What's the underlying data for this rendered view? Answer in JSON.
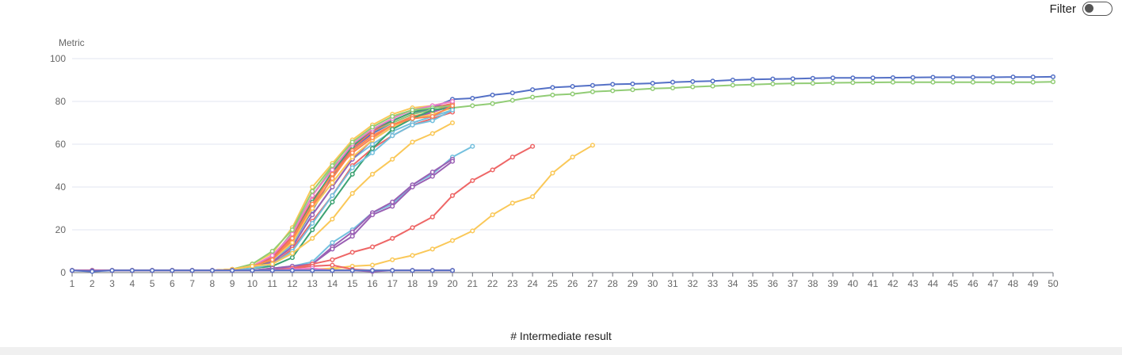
{
  "filter": {
    "label": "Filter",
    "enabled": false
  },
  "chart_data": {
    "type": "line",
    "title": "",
    "xlabel": "# Intermediate result",
    "ylabel": "Metric",
    "xlim": [
      1,
      50
    ],
    "ylim": [
      0,
      100
    ],
    "yticks": [
      0,
      20,
      40,
      60,
      80,
      100
    ],
    "grid": true,
    "legend": "none",
    "series": [
      {
        "color": "#5470c6",
        "x_start": 1,
        "values": [
          1,
          1,
          1,
          1,
          1,
          1,
          1,
          1,
          1,
          2,
          4,
          14,
          29,
          45,
          58,
          65,
          70,
          74,
          77,
          81,
          81.5,
          83,
          84,
          85.5,
          86.5,
          87,
          87.5,
          88,
          88.2,
          88.5,
          89,
          89.3,
          89.5,
          90,
          90.3,
          90.5,
          90.6,
          90.8,
          91,
          91,
          91,
          91.1,
          91.2,
          91.3,
          91.3,
          91.3,
          91.3,
          91.4,
          91.4,
          91.5
        ]
      },
      {
        "color": "#91cc75",
        "x_start": 1,
        "values": [
          1,
          1,
          1,
          1,
          1,
          1,
          1,
          1,
          1,
          3,
          7,
          19,
          36,
          49,
          59,
          66,
          70,
          74,
          76,
          77,
          78,
          79,
          80.5,
          82,
          83,
          83.5,
          84.5,
          85,
          85.5,
          86,
          86.3,
          86.8,
          87.2,
          87.6,
          87.9,
          88.2,
          88.4,
          88.5,
          88.7,
          88.8,
          88.9,
          89,
          89,
          89,
          89,
          89,
          89,
          89,
          89,
          89.2
        ]
      },
      {
        "color": "#fac858",
        "x_start": 1,
        "values": [
          1,
          1,
          1,
          1,
          1,
          1,
          1,
          1,
          1.5,
          4,
          9,
          21,
          40,
          51,
          62,
          69,
          74,
          77,
          78,
          80
        ]
      },
      {
        "color": "#ee6666",
        "x_start": 1,
        "values": [
          1,
          1,
          1,
          1,
          1,
          1,
          1,
          1,
          1.5,
          3,
          7,
          17,
          34,
          46,
          58,
          66,
          71,
          75,
          77,
          79
        ]
      },
      {
        "color": "#73c0de",
        "x_start": 1,
        "values": [
          1,
          1,
          1,
          1,
          1,
          1,
          1,
          1,
          1,
          2,
          5,
          13,
          27,
          40,
          53,
          60,
          66,
          70,
          73,
          76
        ]
      },
      {
        "color": "#3ba272",
        "x_start": 1,
        "values": [
          1,
          1,
          1,
          1,
          1,
          1,
          1,
          1,
          1,
          2,
          6,
          16,
          33,
          47,
          59,
          67,
          71,
          75,
          77,
          78
        ]
      },
      {
        "color": "#fc8452",
        "x_start": 1,
        "values": [
          1,
          1,
          1,
          1,
          1,
          1,
          1,
          1,
          1.5,
          3,
          6,
          15,
          31,
          44,
          57,
          64,
          69,
          73,
          75,
          79
        ]
      },
      {
        "color": "#9a60b4",
        "x_start": 1,
        "values": [
          1,
          1,
          1,
          1,
          1,
          1,
          1,
          1,
          1,
          2,
          5,
          12,
          27,
          40,
          53,
          62,
          68,
          72,
          75,
          78
        ]
      },
      {
        "color": "#ea7ccc",
        "x_start": 1,
        "values": [
          1,
          1,
          1,
          1,
          1,
          1,
          1,
          1,
          1.5,
          3,
          8,
          18,
          36,
          48,
          60,
          67,
          72,
          76,
          78,
          80
        ]
      },
      {
        "color": "#91cc75",
        "x_start": 1,
        "values": [
          1,
          1,
          1,
          1,
          1,
          1,
          1,
          1,
          1.5,
          4,
          10,
          20,
          38,
          50,
          61,
          68,
          73,
          76,
          77,
          78
        ]
      },
      {
        "color": "#ee6666",
        "x_start": 1,
        "values": [
          1,
          1,
          1,
          1,
          1,
          1,
          1,
          1,
          1,
          2,
          4,
          11,
          24,
          36,
          50,
          58,
          64,
          69,
          72,
          75
        ]
      },
      {
        "color": "#fac858",
        "x_start": 1,
        "values": [
          1,
          1,
          1,
          1,
          1,
          1,
          1,
          1,
          1.5,
          3,
          6,
          14,
          30,
          42,
          54,
          62,
          68,
          72,
          74,
          77
        ]
      },
      {
        "color": "#3ba272",
        "x_start": 1,
        "values": [
          1,
          1,
          1,
          1,
          1,
          1,
          1,
          1,
          1,
          2,
          3,
          7,
          20,
          33,
          46,
          58,
          67,
          72,
          76,
          77
        ]
      },
      {
        "color": "#73c0de",
        "x_start": 1,
        "values": [
          1,
          1,
          1,
          1,
          1,
          1,
          1,
          1,
          1,
          2,
          4,
          10,
          23,
          36,
          49,
          56,
          64,
          69,
          71,
          76
        ]
      },
      {
        "color": "#fc8452",
        "x_start": 1,
        "values": [
          1,
          1,
          1,
          1,
          1,
          1,
          1,
          1,
          1.5,
          3,
          6,
          16,
          32,
          46,
          56,
          63,
          69,
          72,
          73,
          78
        ]
      },
      {
        "color": "#fac858",
        "x_start": 1,
        "values": [
          1,
          1,
          1,
          1,
          1,
          1,
          1,
          1,
          1.5,
          3,
          4,
          9,
          16,
          25,
          37,
          46,
          53,
          61,
          65,
          70
        ]
      },
      {
        "color": "#73c0de",
        "x_start": 1,
        "values": [
          1,
          1,
          1,
          1,
          1,
          1,
          1,
          1,
          1,
          1,
          2,
          3,
          5,
          14,
          20,
          28,
          32,
          41,
          46,
          54,
          59
        ]
      },
      {
        "color": "#9a60b4",
        "x_start": 1,
        "values": [
          1,
          1,
          1,
          1,
          1,
          1,
          1,
          1,
          1,
          1,
          2,
          3,
          4,
          12,
          19,
          28,
          33,
          41,
          47,
          53
        ]
      },
      {
        "color": "#9a60b4",
        "x_start": 1,
        "values": [
          1,
          1,
          1,
          1,
          1,
          1,
          1,
          1,
          1,
          1,
          2,
          2,
          4,
          11,
          17,
          27,
          31,
          40,
          45,
          52
        ]
      },
      {
        "color": "#ee6666",
        "x_start": 1,
        "values": [
          1,
          1,
          1,
          1,
          1,
          1,
          1,
          1,
          1,
          1,
          1,
          2,
          4,
          6,
          9.5,
          12,
          16,
          21,
          26,
          36,
          43,
          48,
          54,
          59
        ]
      },
      {
        "color": "#fac858",
        "x_start": 1,
        "values": [
          1,
          1,
          1,
          1,
          1,
          1,
          1,
          1,
          1,
          1,
          1,
          1,
          1.5,
          2,
          3,
          3.5,
          6,
          8,
          11,
          15,
          19.5,
          27,
          32.5,
          35.5,
          46.5,
          54,
          59.5
        ]
      },
      {
        "color": "#ee6666",
        "x_start": 1,
        "values": [
          1,
          1,
          1,
          1,
          1,
          1,
          1,
          1,
          1,
          1,
          1,
          2,
          3,
          3.5,
          1.5,
          1,
          1,
          1,
          1,
          1
        ]
      },
      {
        "color": "#fac858",
        "x_start": 1,
        "values": [
          1,
          1,
          1,
          1,
          1,
          1,
          1,
          1,
          1,
          1,
          1,
          1.5,
          1.5,
          1.5,
          1,
          1,
          1,
          1,
          1,
          1
        ]
      },
      {
        "color": "#ea7ccc",
        "x_start": 1,
        "values": [
          1,
          1,
          1,
          1,
          1,
          1,
          1,
          1,
          1,
          1,
          1,
          1.5,
          2,
          1,
          1,
          1,
          1,
          1,
          1,
          1
        ]
      },
      {
        "color": "#9a60b4",
        "x_start": 1,
        "values": [
          1,
          1,
          1,
          1,
          1,
          1,
          1,
          1,
          1,
          1,
          1,
          1,
          1,
          1,
          1,
          0.5,
          1,
          1,
          1,
          1
        ]
      },
      {
        "color": "#5470c6",
        "x_start": 1,
        "values": [
          1,
          0.5,
          1,
          1,
          1,
          1,
          1,
          1,
          1,
          1,
          1,
          1,
          1,
          1,
          1,
          1,
          1,
          1,
          1,
          1
        ]
      }
    ]
  }
}
